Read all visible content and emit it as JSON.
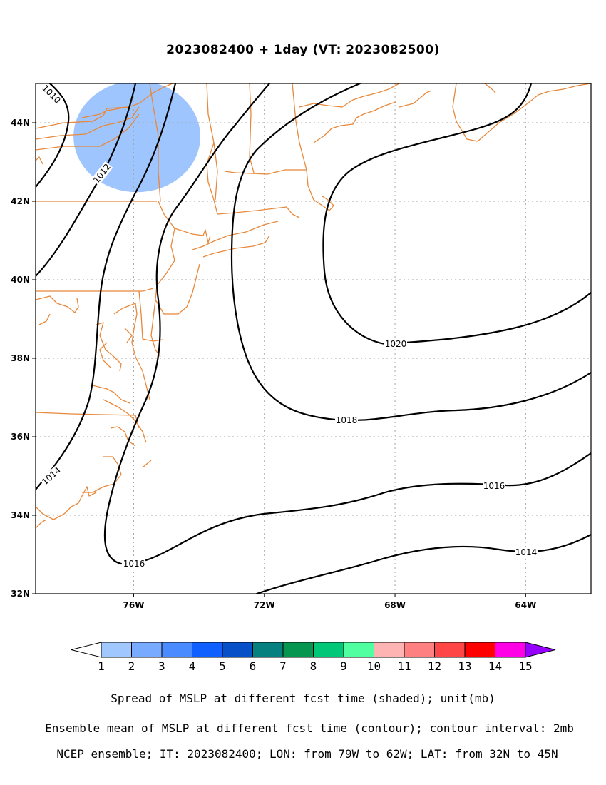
{
  "title": "2023082400 + 1day (VT: 2023082500)",
  "map": {
    "lon_range": [
      -79,
      -62
    ],
    "lat_range": [
      32,
      45
    ],
    "x_ticks": [
      {
        "lon": -76,
        "label": "76W"
      },
      {
        "lon": -72,
        "label": "72W"
      },
      {
        "lon": -68,
        "label": "68W"
      },
      {
        "lon": -64,
        "label": "64W"
      }
    ],
    "y_ticks": [
      {
        "lat": 32,
        "label": "32N"
      },
      {
        "lat": 34,
        "label": "34N"
      },
      {
        "lat": 36,
        "label": "36N"
      },
      {
        "lat": 38,
        "label": "38N"
      },
      {
        "lat": 40,
        "label": "40N"
      },
      {
        "lat": 42,
        "label": "42N"
      },
      {
        "lat": 44,
        "label": "44N"
      }
    ],
    "grid": true,
    "coastline_color": "#e8883a",
    "contour_color": "#000000",
    "contour_interval_mb": 2,
    "contours": [
      {
        "level": 1010,
        "label": "1010"
      },
      {
        "level": 1012,
        "label": "1012"
      },
      {
        "level": 1014,
        "label": "1014"
      },
      {
        "level": 1016,
        "label": "1016"
      },
      {
        "level": 1018,
        "label": "1018"
      },
      {
        "level": 1020,
        "label": "1020"
      }
    ],
    "shaded_spread": [
      {
        "center_lon": -75.9,
        "center_lat": 43.65,
        "value_class": 1,
        "color": "#9fc5ff"
      }
    ]
  },
  "colorbar": {
    "colors": [
      "#a0c8ff",
      "#78aaff",
      "#4a8cff",
      "#1060ff",
      "#0850c8",
      "#078080",
      "#079650",
      "#00c878",
      "#50ffa0",
      "#ffb4b4",
      "#ff8080",
      "#ff4646",
      "#ff0000",
      "#ff00e6",
      "#9600ff"
    ],
    "labels": [
      "1",
      "2",
      "3",
      "4",
      "5",
      "6",
      "7",
      "8",
      "9",
      "10",
      "11",
      "12",
      "13",
      "14",
      "15"
    ],
    "low_end_color": "#ffffff",
    "high_end_color": "#9600ff"
  },
  "captions": [
    "Spread of MSLP at different fcst time (shaded); unit(mb)",
    "Ensemble mean of MSLP at different fcst time (contour); contour interval: 2mb",
    "NCEP ensemble; IT: 2023082400; LON: from 79W to 62W; LAT: from 32N to 45N"
  ]
}
